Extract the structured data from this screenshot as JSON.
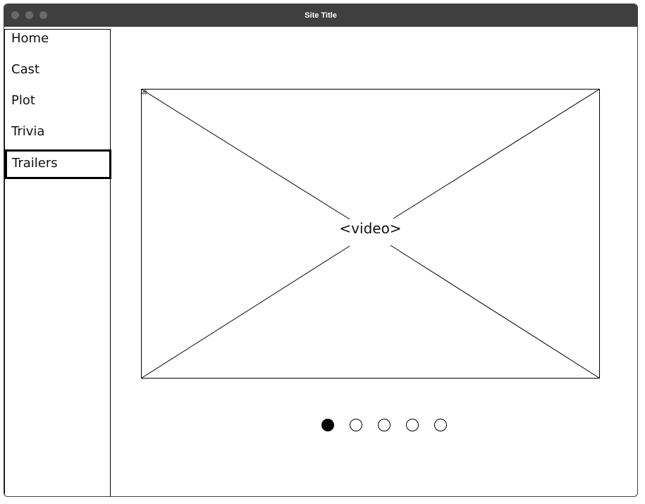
{
  "window": {
    "title": "Site Title"
  },
  "sidebar": {
    "items": [
      {
        "label": "Home"
      },
      {
        "label": "Cast"
      },
      {
        "label": "Plot"
      },
      {
        "label": "Trivia"
      },
      {
        "label": "Trailers"
      }
    ],
    "selected": "Trailers"
  },
  "main": {
    "video_label": "<video>"
  },
  "pager": {
    "count": 5,
    "active_index": 0
  },
  "colors": {
    "titlebar": "#3f3f3f",
    "border": "#000000",
    "background": "#ffffff"
  }
}
